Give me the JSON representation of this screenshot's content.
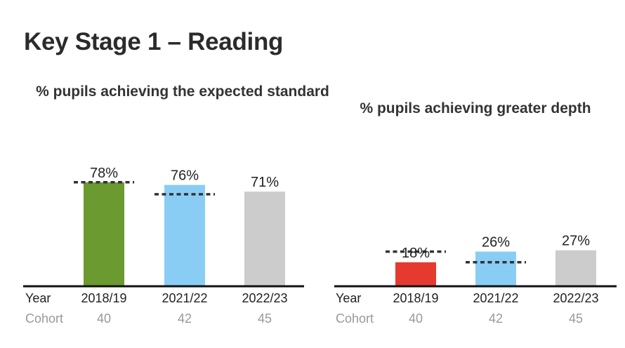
{
  "page": {
    "title": "Key Stage 1 – Reading"
  },
  "chart_data": [
    {
      "type": "bar",
      "title": "% pupils achieving the expected standard",
      "row_labels": {
        "category": "Year",
        "cohort": "Cohort"
      },
      "categories": [
        "2018/19",
        "2021/22",
        "2022/23"
      ],
      "cohort": [
        "40",
        "42",
        "45"
      ],
      "values": [
        78,
        76,
        71
      ],
      "value_labels": [
        "78%",
        "76%",
        "71%"
      ],
      "benchmark": [
        78,
        69,
        null
      ],
      "bar_colors": [
        "#6a9a30",
        "#89cdf5",
        "#cccccc"
      ],
      "benchmark_style": "dashed line",
      "ylim": [
        0,
        100
      ]
    },
    {
      "type": "bar",
      "title": "% pupils achieving greater depth",
      "row_labels": {
        "category": "Year",
        "cohort": "Cohort"
      },
      "categories": [
        "2018/19",
        "2021/22",
        "2022/23"
      ],
      "cohort": [
        "40",
        "42",
        "45"
      ],
      "values": [
        18,
        26,
        27
      ],
      "value_labels": [
        "18%",
        "26%",
        "27%"
      ],
      "benchmark": [
        26,
        18,
        null
      ],
      "bar_colors": [
        "#e53a30",
        "#89cdf5",
        "#cccccc"
      ],
      "benchmark_style": "dashed line",
      "ylim": [
        0,
        100
      ]
    }
  ]
}
